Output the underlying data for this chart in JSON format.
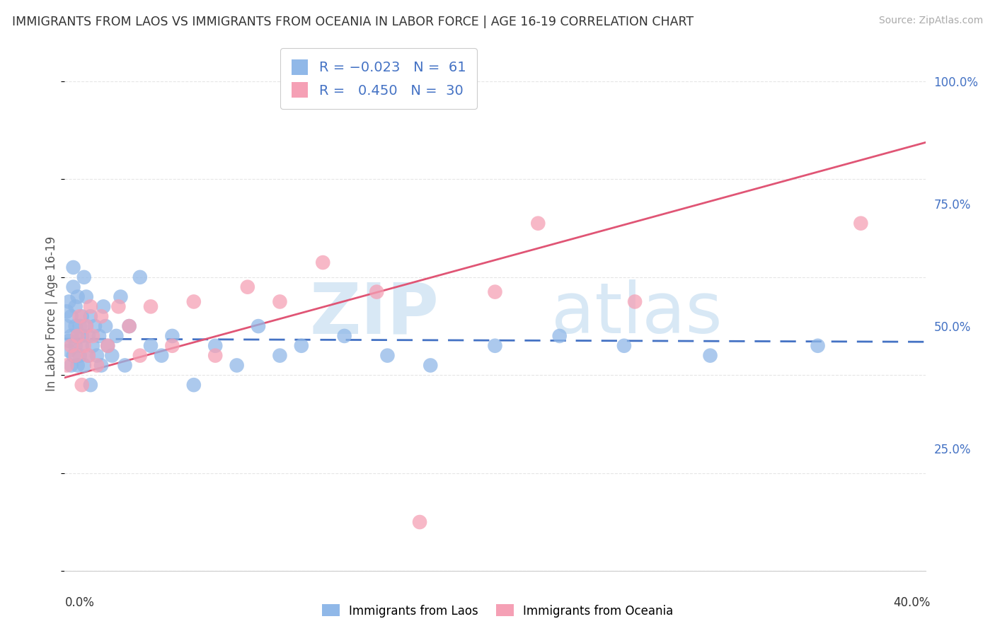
{
  "title": "IMMIGRANTS FROM LAOS VS IMMIGRANTS FROM OCEANIA IN LABOR FORCE | AGE 16-19 CORRELATION CHART",
  "source": "Source: ZipAtlas.com",
  "ylabel": "In Labor Force | Age 16-19",
  "yticks": [
    0.0,
    0.25,
    0.5,
    0.75,
    1.0
  ],
  "ytick_labels": [
    "",
    "25.0%",
    "50.0%",
    "75.0%",
    "100.0%"
  ],
  "legend": {
    "laos_R": "-0.023",
    "laos_N": "61",
    "oceania_R": "0.450",
    "oceania_N": "30"
  },
  "laos_color": "#90b8e8",
  "oceania_color": "#f5a0b5",
  "laos_line_color": "#4472c4",
  "oceania_line_color": "#e05575",
  "xlim": [
    0.0,
    0.4
  ],
  "ylim": [
    0.0,
    1.05
  ],
  "background_color": "#ffffff",
  "grid_color": "#e0e0e0",
  "laos_x": [
    0.001,
    0.001,
    0.002,
    0.002,
    0.002,
    0.003,
    0.003,
    0.003,
    0.004,
    0.004,
    0.004,
    0.005,
    0.005,
    0.005,
    0.006,
    0.006,
    0.006,
    0.007,
    0.007,
    0.008,
    0.008,
    0.008,
    0.009,
    0.009,
    0.01,
    0.01,
    0.011,
    0.011,
    0.012,
    0.012,
    0.013,
    0.014,
    0.015,
    0.016,
    0.017,
    0.018,
    0.019,
    0.02,
    0.022,
    0.024,
    0.026,
    0.028,
    0.03,
    0.035,
    0.04,
    0.045,
    0.05,
    0.06,
    0.07,
    0.08,
    0.09,
    0.1,
    0.11,
    0.13,
    0.15,
    0.17,
    0.2,
    0.23,
    0.26,
    0.3,
    0.35
  ],
  "laos_y": [
    0.5,
    0.53,
    0.47,
    0.45,
    0.55,
    0.48,
    0.42,
    0.52,
    0.58,
    0.62,
    0.44,
    0.46,
    0.5,
    0.54,
    0.48,
    0.42,
    0.56,
    0.5,
    0.44,
    0.52,
    0.46,
    0.48,
    0.6,
    0.42,
    0.5,
    0.56,
    0.44,
    0.48,
    0.52,
    0.38,
    0.46,
    0.5,
    0.44,
    0.48,
    0.42,
    0.54,
    0.5,
    0.46,
    0.44,
    0.48,
    0.56,
    0.42,
    0.5,
    0.6,
    0.46,
    0.44,
    0.48,
    0.38,
    0.46,
    0.42,
    0.5,
    0.44,
    0.46,
    0.48,
    0.44,
    0.42,
    0.46,
    0.48,
    0.46,
    0.44,
    0.46
  ],
  "oceania_x": [
    0.001,
    0.003,
    0.005,
    0.006,
    0.007,
    0.008,
    0.009,
    0.01,
    0.011,
    0.012,
    0.013,
    0.015,
    0.017,
    0.02,
    0.025,
    0.03,
    0.035,
    0.04,
    0.05,
    0.06,
    0.07,
    0.085,
    0.1,
    0.12,
    0.145,
    0.165,
    0.2,
    0.22,
    0.265,
    0.37
  ],
  "oceania_y": [
    0.42,
    0.46,
    0.44,
    0.48,
    0.52,
    0.38,
    0.46,
    0.5,
    0.44,
    0.54,
    0.48,
    0.42,
    0.52,
    0.46,
    0.54,
    0.5,
    0.44,
    0.54,
    0.46,
    0.55,
    0.44,
    0.58,
    0.55,
    0.63,
    0.57,
    0.1,
    0.57,
    0.71,
    0.55,
    0.71
  ],
  "laos_line_x": [
    0.0,
    0.4
  ],
  "laos_line_y": [
    0.474,
    0.468
  ],
  "oceania_line_x": [
    0.0,
    0.4
  ],
  "oceania_line_y": [
    0.395,
    0.875
  ]
}
